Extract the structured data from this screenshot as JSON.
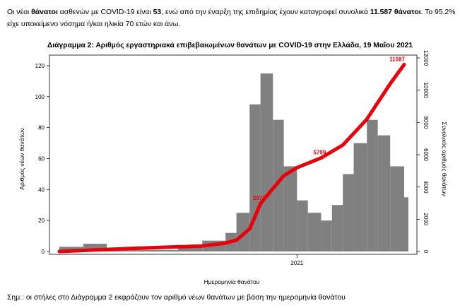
{
  "intro": {
    "p1": "Οι νέοι",
    "b1": "θάνατοι",
    "p2": "ασθενών με COVID-19 είναι",
    "b2": "53",
    "p3": ", ενώ από την έναρξη της επιδημίας έχουν καταγραφεί συνολικά",
    "b3": "11.587 θάνατοι",
    "p4": ". Το 95.2% είχε υποκείμενο νόσημα ή/και ηλικία 70 ετών και άνω."
  },
  "note": "Σημ.: οι στήλες στο Διάγραμμα 2 εκφράζουν τον αριθμό νέων θανάτων με βάση την ημερομηνία θανάτου",
  "chart_data": {
    "type": "bar",
    "title": "Διάγραμμα 2: Αριθμός εργαστηριακά επιβεβαιωμένων θανάτων με COVID-19 στην Ελλάδα, 19 Μαΐου 2021",
    "xlabel": "Ημερομηνία θανάτου",
    "ylabel": "Αριθμός νέων θανάτων",
    "y2label": "Συνολικός αριθμός θανάτων",
    "ylim": [
      0,
      125
    ],
    "y2lim": [
      0,
      12000
    ],
    "yticks": [
      "0",
      "20",
      "40",
      "60",
      "80",
      "100",
      "120"
    ],
    "y2ticks": [
      "0",
      "2000",
      "4000",
      "6000",
      "8000",
      "10000",
      "12000"
    ],
    "xtick_label": "2021",
    "bar_color": "#808080",
    "line_color": "#e8000b",
    "series": [
      {
        "kind": "bar",
        "x": [
          "2020-03",
          "2020-04",
          "2020-05",
          "2020-06",
          "2020-07",
          "2020-08",
          "2020-09",
          "2020-10",
          "2020-10-15",
          "2020-11-01",
          "2020-11-15",
          "2020-12-01",
          "2020-12-15",
          "2021-01-01",
          "2021-01-15",
          "2021-02-01",
          "2021-02-15",
          "2021-03-01",
          "2021-03-15",
          "2021-04-01",
          "2021-04-15",
          "2021-05-01",
          "2021-05-19"
        ],
        "values": [
          3,
          5,
          2,
          1,
          1,
          3,
          7,
          12,
          25,
          95,
          115,
          85,
          55,
          33,
          25,
          20,
          30,
          50,
          70,
          85,
          75,
          55,
          35
        ]
      },
      {
        "kind": "line",
        "x": [
          "2020-03",
          "2020-06",
          "2020-09",
          "2020-10",
          "2020-10-15",
          "2020-11-01",
          "2020-11-15",
          "2020-12-01",
          "2020-12-15",
          "2021-01-01",
          "2021-02-01",
          "2021-03-01",
          "2021-04-01",
          "2021-05-01",
          "2021-05-19"
        ],
        "values": [
          0,
          190,
          340,
          520,
          700,
          1400,
          2971,
          3900,
          4700,
          5200,
          5799,
          6600,
          8200,
          10400,
          11587
        ]
      }
    ],
    "annotations": [
      "2971",
      "5799",
      "11587"
    ]
  }
}
